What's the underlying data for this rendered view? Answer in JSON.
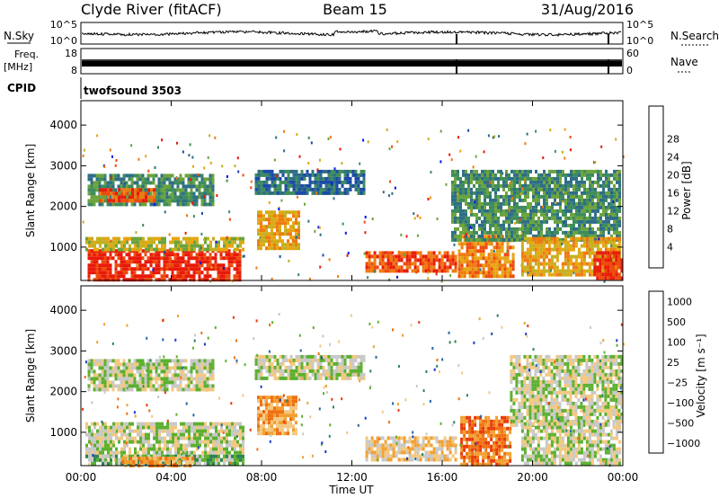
{
  "header": {
    "station": "Clyde River (fitACF)",
    "beam": "Beam 15",
    "date": "31/Aug/2016"
  },
  "top_panels": {
    "nsky": {
      "label": "N.Sky",
      "tick_top": "10^5",
      "tick_bottom": "10^0",
      "right_label": "N.Search",
      "right_top": "10^5",
      "right_bottom": "10^0"
    },
    "freq": {
      "label_line1": "Freq.",
      "label_line2": "[MHz]",
      "tick_top": "18",
      "tick_bottom": "8",
      "right_label": "Nave",
      "right_top": "60",
      "right_bottom": "0"
    },
    "cpid": {
      "label": "CPID",
      "value": "twofsound 3503"
    }
  },
  "chart_data": [
    {
      "type": "heatmap",
      "name": "power",
      "ylabel": "Slant Range [km]",
      "xlabel": "Time UT",
      "x_ticks": [
        "00:00",
        "04:00",
        "08:00",
        "12:00",
        "16:00",
        "20:00",
        "00:00"
      ],
      "xlim_hours": [
        0,
        24
      ],
      "y_ticks": [
        1000,
        2000,
        3000,
        4000
      ],
      "ylim": [
        180,
        4600
      ],
      "colorbar": {
        "label": "Power [dB]",
        "ticks": [
          "4",
          "8",
          "12",
          "16",
          "20",
          "24",
          "28"
        ],
        "colors": [
          "#0a14e6",
          "#1b4aa8",
          "#2e6e86",
          "#3e8c5c",
          "#6ca33c",
          "#c4b01e",
          "#e8a510",
          "#ee7a10",
          "#ee4a0c",
          "#e81a0a"
        ]
      },
      "regions": [
        {
          "t0": 0.3,
          "t1": 7.0,
          "r0": 200,
          "r1": 950,
          "level": 9
        },
        {
          "t0": 0.2,
          "t1": 7.2,
          "r0": 900,
          "r1": 1250,
          "level": 5
        },
        {
          "t0": 0.3,
          "t1": 5.8,
          "r0": 2050,
          "r1": 2800,
          "level": 3
        },
        {
          "t0": 0.8,
          "t1": 3.2,
          "r0": 2150,
          "r1": 2450,
          "level": 8
        },
        {
          "t0": 7.8,
          "t1": 9.6,
          "r0": 1000,
          "r1": 1900,
          "level": 6
        },
        {
          "t0": 7.7,
          "t1": 12.5,
          "r0": 2350,
          "r1": 2900,
          "level": 2
        },
        {
          "t0": 12.6,
          "t1": 16.6,
          "r0": 400,
          "r1": 900,
          "level": 8
        },
        {
          "t0": 16.7,
          "t1": 19.2,
          "r0": 250,
          "r1": 1300,
          "level": 7
        },
        {
          "t0": 16.4,
          "t1": 23.9,
          "r0": 1200,
          "r1": 2900,
          "level": 3
        },
        {
          "t0": 19.5,
          "t1": 23.9,
          "r0": 350,
          "r1": 1250,
          "level": 6
        },
        {
          "t0": 22.7,
          "t1": 23.9,
          "r0": 250,
          "r1": 900,
          "level": 9
        }
      ]
    },
    {
      "type": "heatmap",
      "name": "velocity",
      "ylabel": "Slant Range [km]",
      "xlabel": "Time UT",
      "x_ticks": [
        "00:00",
        "04:00",
        "08:00",
        "12:00",
        "16:00",
        "20:00",
        "00:00"
      ],
      "xlim_hours": [
        0,
        24
      ],
      "y_ticks": [
        1000,
        2000,
        3000,
        4000
      ],
      "ylim": [
        180,
        4600
      ],
      "colorbar": {
        "label": "Velocity [m s⁻¹]",
        "ticks": [
          "1000",
          "500",
          "100",
          "25",
          "−25",
          "−100",
          "−500",
          "−1000"
        ],
        "colors": [
          "#1a3ccc",
          "#2466a8",
          "#2e8454",
          "#5cb030",
          "#c8c8c8",
          "#f2c880",
          "#f2a030",
          "#f07010",
          "#e83a0a"
        ]
      },
      "regions": [
        {
          "t0": 0.2,
          "t1": 7.2,
          "r0": 350,
          "r1": 1250,
          "level": 4
        },
        {
          "t0": 0.2,
          "t1": 7.2,
          "r0": 200,
          "r1": 450,
          "level": 3
        },
        {
          "t0": 1.8,
          "t1": 5.0,
          "r0": 200,
          "r1": 400,
          "level": 6
        },
        {
          "t0": 0.3,
          "t1": 5.8,
          "r0": 2050,
          "r1": 2800,
          "level": 4
        },
        {
          "t0": 7.8,
          "t1": 9.5,
          "r0": 1000,
          "r1": 1900,
          "level": 6
        },
        {
          "t0": 7.7,
          "t1": 12.5,
          "r0": 2350,
          "r1": 2900,
          "level": 4
        },
        {
          "t0": 12.6,
          "t1": 16.6,
          "r0": 350,
          "r1": 900,
          "level": 5
        },
        {
          "t0": 16.8,
          "t1": 19.0,
          "r0": 250,
          "r1": 1400,
          "level": 7
        },
        {
          "t0": 19.0,
          "t1": 23.9,
          "r0": 1200,
          "r1": 2900,
          "level": 4
        },
        {
          "t0": 19.5,
          "t1": 23.9,
          "r0": 250,
          "r1": 1250,
          "level": 4
        }
      ]
    }
  ]
}
